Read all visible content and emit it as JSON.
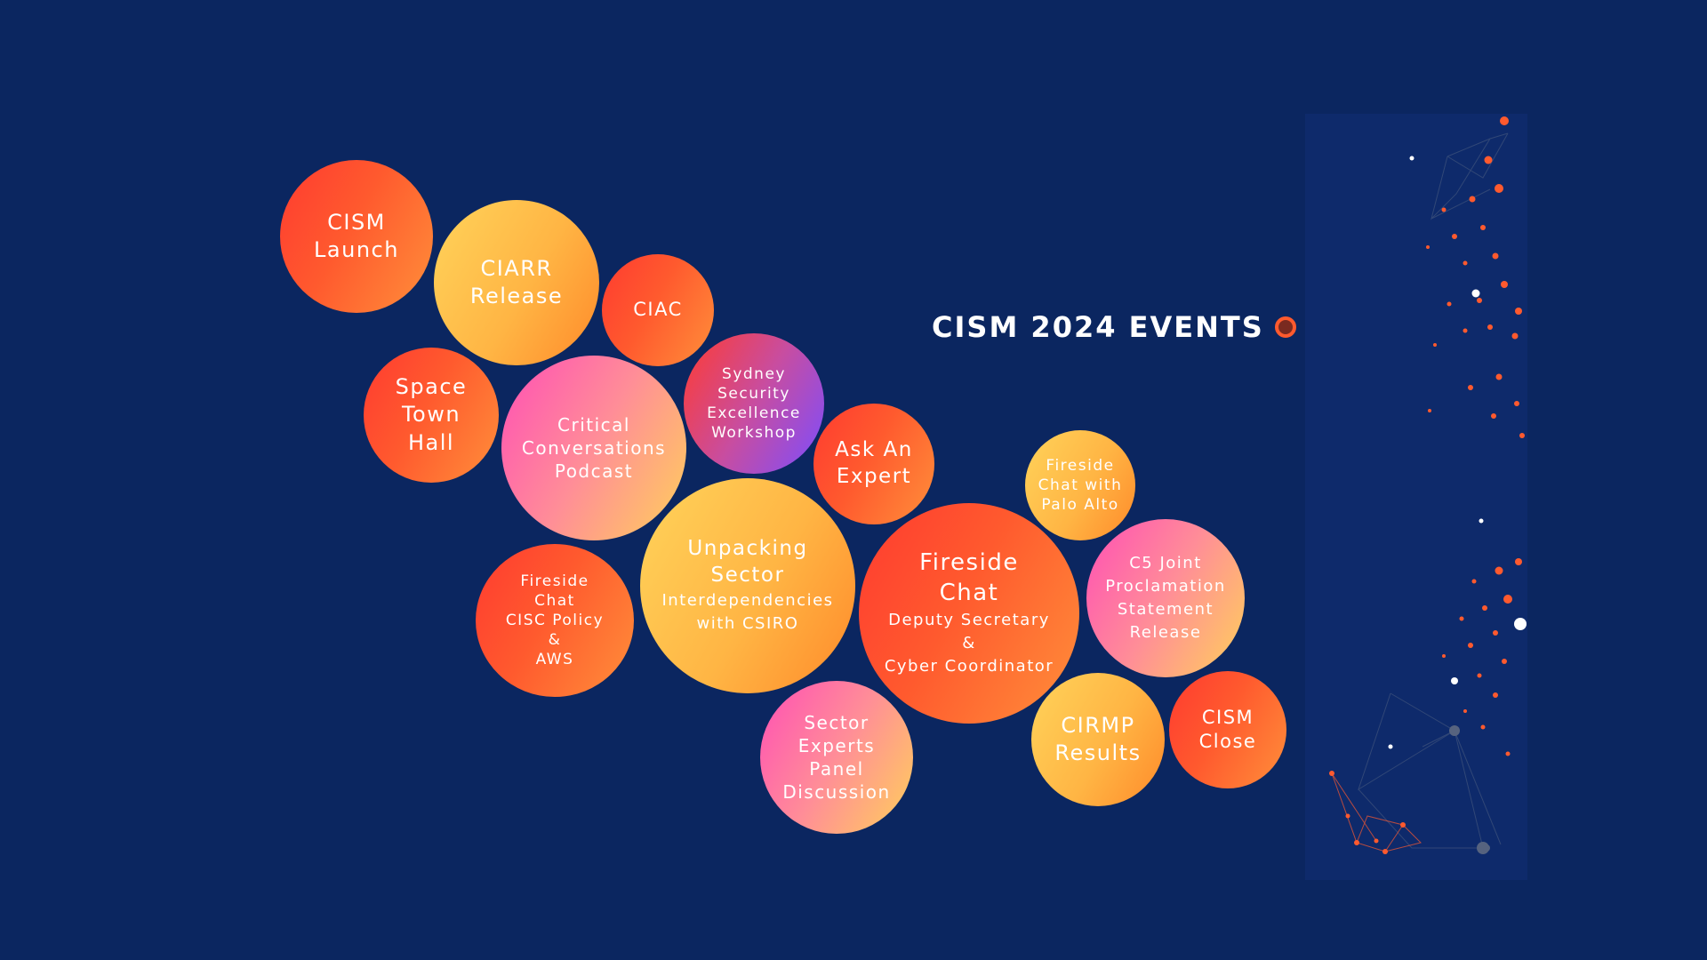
{
  "header": {
    "title": "CISM 2024 EVENTS"
  },
  "colors": {
    "background": "#0b2660",
    "accent": "#ff5a2e",
    "panel": "#0e2a6b"
  },
  "events": {
    "cism_launch": {
      "lines": [
        "CISM",
        "Launch"
      ]
    },
    "ciarr_release": {
      "lines": [
        "CIARR",
        "Release"
      ]
    },
    "ciac": {
      "lines": [
        "CIAC"
      ]
    },
    "space_town_hall": {
      "lines": [
        "Space",
        "Town",
        "Hall"
      ]
    },
    "critical_conversations": {
      "lines": [
        "Critical",
        "Conversations",
        "Podcast"
      ]
    },
    "sydney_workshop": {
      "lines": [
        "Sydney",
        "Security",
        "Excellence",
        "Workshop"
      ]
    },
    "ask_an_expert": {
      "lines": [
        "Ask An",
        "Expert"
      ]
    },
    "fireside_palo_alto": {
      "lines": [
        "Fireside",
        "Chat with",
        "Palo Alto"
      ]
    },
    "fireside_cisc": {
      "lines": [
        "Fireside",
        "Chat",
        "CISC Policy",
        "&",
        "AWS"
      ]
    },
    "unpacking_sector": {
      "title": [
        "Unpacking",
        "Sector"
      ],
      "sub": [
        "Interdependencies",
        "with CSIRO"
      ]
    },
    "fireside_deputy": {
      "title": [
        "Fireside",
        "Chat"
      ],
      "sub": [
        "Deputy Secretary",
        "&",
        "Cyber Coordinator"
      ]
    },
    "c5_joint": {
      "lines": [
        "C5 Joint",
        "Proclamation",
        "Statement",
        "Release"
      ]
    },
    "sector_experts": {
      "lines": [
        "Sector",
        "Experts",
        "Panel",
        "Discussion"
      ]
    },
    "cirmp_results": {
      "lines": [
        "CIRMP",
        "Results"
      ]
    },
    "cism_close": {
      "lines": [
        "CISM",
        "Close"
      ]
    }
  }
}
